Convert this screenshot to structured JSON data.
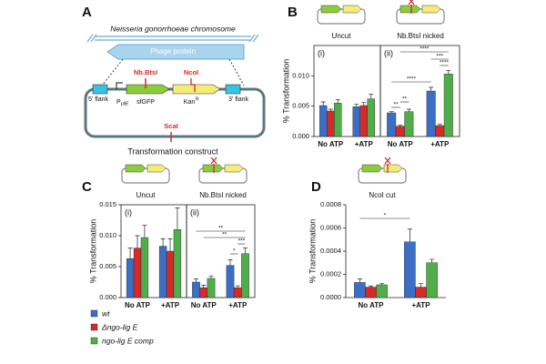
{
  "panel_labels": [
    "A",
    "B",
    "C",
    "D"
  ],
  "diagram": {
    "chromosome": "Neisseria gonorrhoeae chromosome",
    "gene": "Phage protein",
    "site_nick": "Nb.BtsI",
    "site_ncoi": "NcoI",
    "site_scai": "ScaI",
    "flank_5": "5' flank",
    "promoter": "P",
    "promoter_sub": "pilE",
    "gfp": "sfGFP",
    "kan": "Kan",
    "kan_sup": "R",
    "flank_3": "3' flank",
    "caption": "Transformation construct"
  },
  "chart_data": [
    {
      "type": "bar",
      "title": "Uncut",
      "panel": "(i)",
      "ylabel": "% Transformation",
      "categories": [
        "No ATP",
        "+ATP"
      ],
      "series": [
        {
          "name": "wt",
          "color": "#3b6fc6",
          "values": [
            0.0051,
            0.0049
          ],
          "errors": [
            0.0006,
            0.0004
          ]
        },
        {
          "name": "Δngo-lig E",
          "color": "#d42a2a",
          "values": [
            0.0042,
            0.0051
          ],
          "errors": [
            0.0003,
            0.0005
          ]
        },
        {
          "name": "ngo-lig E comp",
          "color": "#4fae4a",
          "values": [
            0.0055,
            0.0062
          ],
          "errors": [
            0.0006,
            0.0008
          ]
        }
      ],
      "ylim": [
        0,
        0.015
      ],
      "yticks": [
        {
          "value": 0,
          "label": "0.000"
        },
        {
          "value": 0.005,
          "label": "0.005"
        },
        {
          "value": 0.01,
          "label": "0.010"
        }
      ]
    },
    {
      "type": "bar",
      "title": "Nb.BtsI nicked",
      "panel": "(ii)",
      "categories": [
        "No ATP",
        "+ATP"
      ],
      "series": [
        {
          "name": "wt",
          "color": "#3b6fc6",
          "values": [
            0.0039,
            0.0075
          ],
          "errors": [
            0.0002,
            0.0006
          ]
        },
        {
          "name": "Δngo-lig E",
          "color": "#d42a2a",
          "values": [
            0.0017,
            0.0018
          ],
          "errors": [
            0.0002,
            0.0002
          ]
        },
        {
          "name": "ngo-lig E comp",
          "color": "#4fae4a",
          "values": [
            0.0041,
            0.0103
          ],
          "errors": [
            0.0004,
            0.0006
          ]
        }
      ],
      "ylim": [
        0,
        0.015
      ],
      "annotations": [
        "**",
        "**",
        "****",
        "****",
        "***",
        "****"
      ]
    },
    {
      "type": "bar",
      "title": "Uncut",
      "panel": "(i)",
      "ylabel": "% Transformation",
      "categories": [
        "No ATP",
        "+ATP"
      ],
      "series": [
        {
          "name": "wt",
          "color": "#3b6fc6",
          "values": [
            0.0063,
            0.0083
          ],
          "errors": [
            0.0017,
            0.0012
          ]
        },
        {
          "name": "Δngo-lig E",
          "color": "#d42a2a",
          "values": [
            0.008,
            0.0075
          ],
          "errors": [
            0.002,
            0.002
          ]
        },
        {
          "name": "ngo-lig E comp",
          "color": "#4fae4a",
          "values": [
            0.0097,
            0.011
          ],
          "errors": [
            0.002,
            0.0035
          ]
        }
      ],
      "ylim": [
        0,
        0.015
      ],
      "yticks": [
        {
          "value": 0,
          "label": "0.000"
        },
        {
          "value": 0.005,
          "label": "0.005"
        },
        {
          "value": 0.01,
          "label": "0.010"
        },
        {
          "value": 0.015,
          "label": "0.015"
        }
      ]
    },
    {
      "type": "bar",
      "title": "Nb.BtsI nicked",
      "panel": "(ii)",
      "categories": [
        "No ATP",
        "+ATP"
      ],
      "series": [
        {
          "name": "wt",
          "color": "#3b6fc6",
          "values": [
            0.0025,
            0.0052
          ],
          "errors": [
            0.0005,
            0.0009
          ]
        },
        {
          "name": "Δngo-lig E",
          "color": "#d42a2a",
          "values": [
            0.0016,
            0.0016
          ],
          "errors": [
            0.0004,
            0.0003
          ]
        },
        {
          "name": "ngo-lig E comp",
          "color": "#4fae4a",
          "values": [
            0.0031,
            0.0071
          ],
          "errors": [
            0.0004,
            0.0009
          ]
        }
      ],
      "ylim": [
        0,
        0.015
      ],
      "annotations": [
        "*",
        "***",
        "**",
        "**"
      ]
    },
    {
      "type": "bar",
      "title": "NcoI cut",
      "ylabel": "% Transformation",
      "categories": [
        "No ATP",
        "+ATP"
      ],
      "series": [
        {
          "name": "wt",
          "color": "#3b6fc6",
          "values": [
            0.00013,
            0.00048
          ],
          "errors": [
            3e-05,
            0.00011
          ]
        },
        {
          "name": "Δngo-lig E",
          "color": "#d42a2a",
          "values": [
            9e-05,
            9e-05
          ],
          "errors": [
            1e-05,
            3e-05
          ]
        },
        {
          "name": "ngo-lig E comp",
          "color": "#4fae4a",
          "values": [
            0.00011,
            0.0003
          ],
          "errors": [
            1e-05,
            3e-05
          ]
        }
      ],
      "ylim": [
        0,
        0.0008
      ],
      "yticks": [
        {
          "value": 0,
          "label": "0.0000"
        },
        {
          "value": 0.0002,
          "label": "0.0002"
        },
        {
          "value": 0.0004,
          "label": "0.0004"
        },
        {
          "value": 0.0006,
          "label": "0.0006"
        },
        {
          "value": 0.0008,
          "label": "0.0008"
        }
      ],
      "annotations": [
        "*"
      ]
    }
  ]
}
